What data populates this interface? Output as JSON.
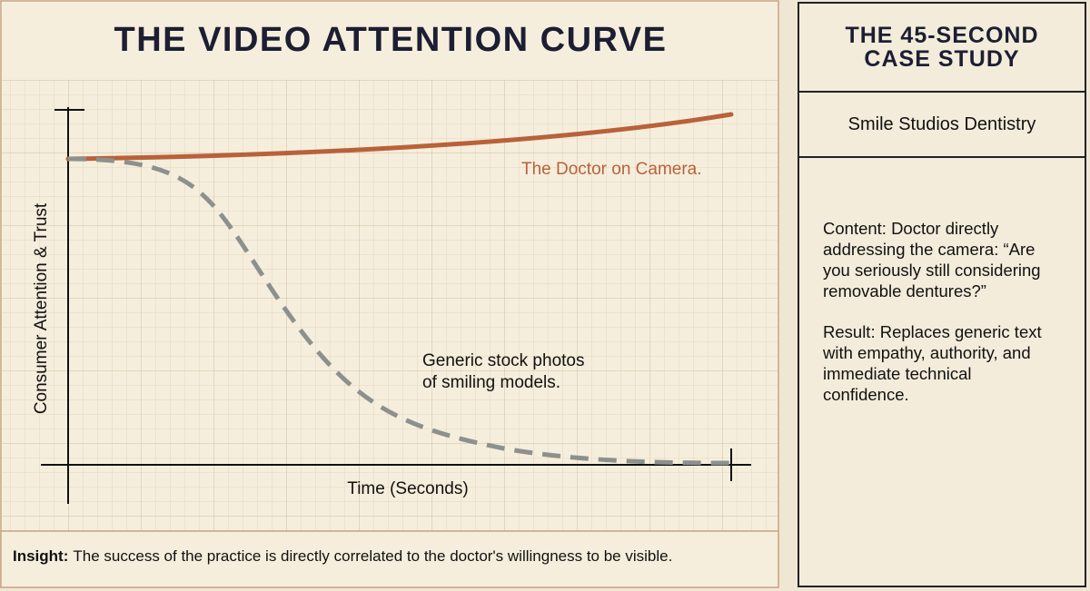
{
  "title": "THE VIDEO ATTENTION CURVE",
  "chart": {
    "y_axis_label": "Consumer Attention & Trust",
    "x_axis_label": "Time (Seconds)",
    "annotations": [
      {
        "lines": [
          "The Doctor on Camera."
        ]
      },
      {
        "lines": [
          "Generic stock photos",
          "of smiling models."
        ]
      }
    ]
  },
  "insight": {
    "label": "Insight:",
    "text": "The success of the practice is directly correlated to the doctor's willingness to be visible."
  },
  "case_study": {
    "title": "THE 45-SECOND CASE STUDY",
    "subtitle": "Smile Studios Dentistry",
    "content": "Content: Doctor directly addressing the camera: “Are you seriously still considering removable dentures?”",
    "result": "Result: Replaces generic text with empathy, authority, and immediate technical confidence."
  }
}
